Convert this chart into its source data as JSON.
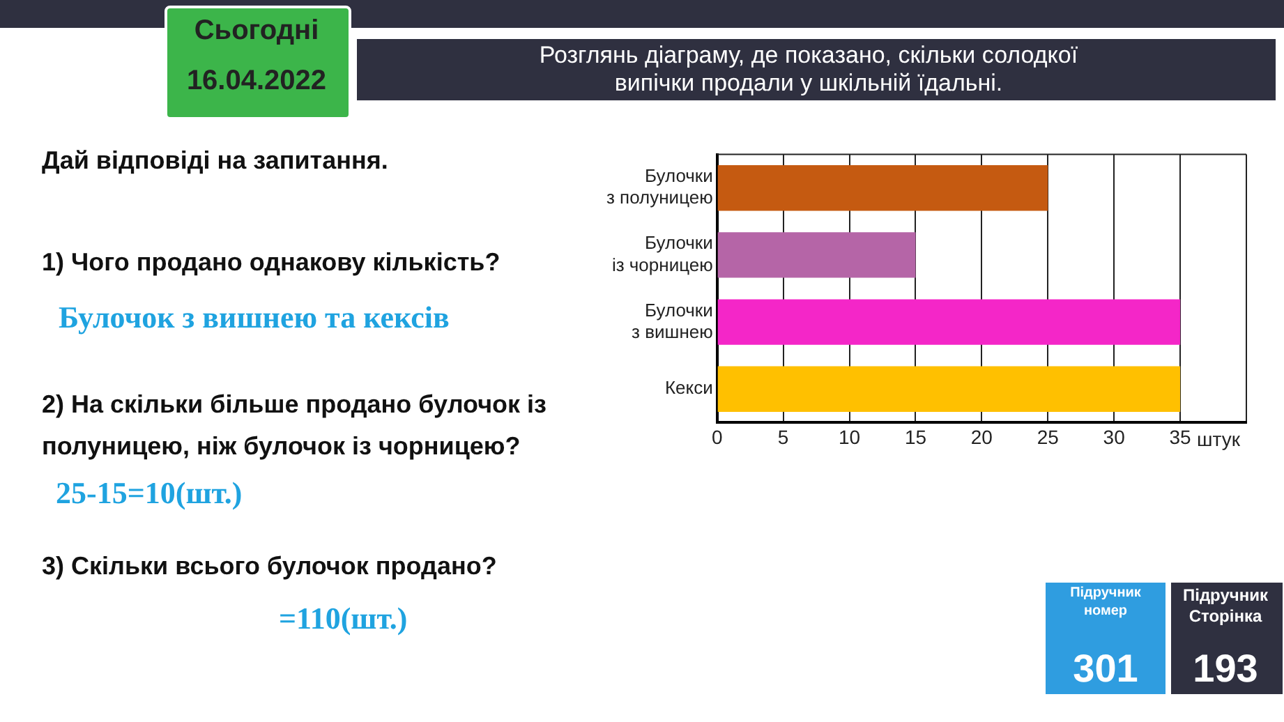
{
  "chart_data": {
    "type": "bar",
    "orientation": "horizontal",
    "title": "Розглянь діаграму, де показано, скільки солодкої випічки продали у  шкільній їдальні.",
    "categories": [
      "Булочки з полуницею",
      "Булочки із чорницею",
      "Булочки з вишнею",
      "Кекси"
    ],
    "values": [
      25,
      15,
      35,
      35
    ],
    "colors": [
      "#c55a11",
      "#b565a7",
      "#f426c8",
      "#ffc000"
    ],
    "xlim": [
      0,
      40
    ],
    "xticks": [
      0,
      5,
      10,
      15,
      20,
      25,
      30,
      35,
      {
        "value": 40,
        "label": null
      }
    ],
    "xlabel": "штук",
    "grid": "x",
    "legend": false,
    "annotations": [
      "Сьогодні",
      "16.04.2022",
      "Дай відповіді на запитання.",
      "1) Чого продано однакову кількість?",
      "Булочок з вишнею та кексів",
      "2) На скільки більше продано булочок із полуницею, ніж булочок із чорницею?",
      "25-15=10(шт.)",
      "3) Скільки всього булочок продано?",
      "=110(шт.)",
      "Підручник номер",
      "301",
      "Підручник Сторінка",
      "193"
    ]
  }
}
